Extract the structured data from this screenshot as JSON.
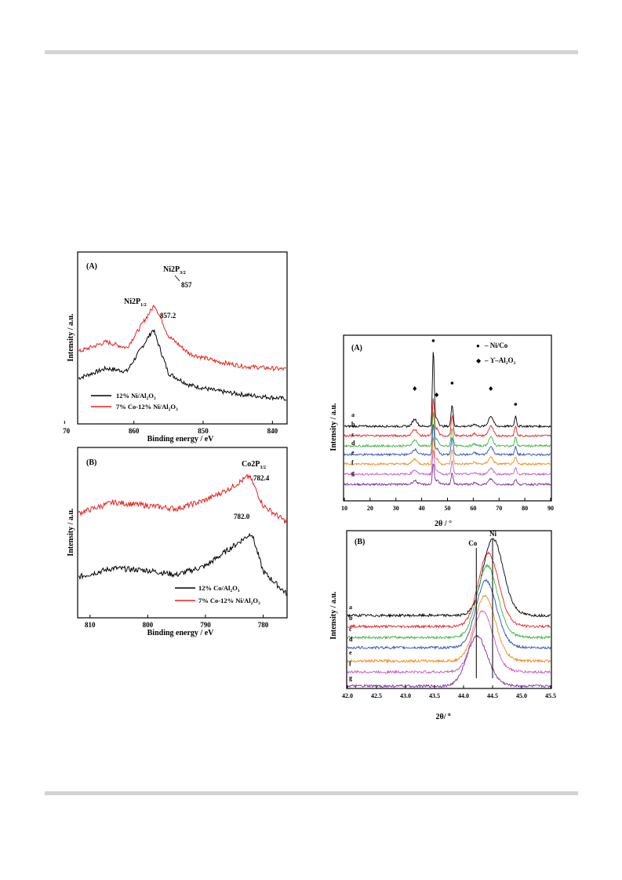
{
  "xps_A": {
    "panel_label": "(A)",
    "xlabel": "Binding energy / eV",
    "ylabel": "Intensity / a.u.",
    "x_ticks": [
      870,
      860,
      850,
      840
    ],
    "xlim": [
      868,
      838
    ],
    "peak_labels": {
      "upper_main": "Ni2P",
      "upper_main_sub": "3/2",
      "upper_value": "857",
      "upper_small": "Ni2P",
      "upper_small_sub": "1/2",
      "lower_value": "857.2"
    },
    "legend": [
      {
        "text": "12% Ni/Al",
        "sub1": "2",
        "mid": "O",
        "sub2": "3",
        "tail": "",
        "color": "#000000"
      },
      {
        "text": "7% Co-12% Ni/Al",
        "sub1": "2",
        "mid": "O",
        "sub2": "3",
        "tail": "",
        "color": "#e8231f"
      }
    ]
  },
  "xps_B": {
    "panel_label": "(B)",
    "xlabel": "Binding energy / eV",
    "ylabel": "Intensity / a.u.",
    "x_ticks": [
      810,
      800,
      790,
      780
    ],
    "xlim": [
      812,
      776
    ],
    "peak_labels": {
      "upper_main": "Co2P",
      "upper_main_sub": "3/2",
      "upper_value": "782.4",
      "lower_value": "782.0"
    },
    "legend": [
      {
        "text": "12% Co/Al",
        "sub1": "2",
        "mid": "O",
        "sub2": "3",
        "tail": "",
        "color": "#000000"
      },
      {
        "text": "7% Co-12% Ni/Al",
        "sub1": "2",
        "mid": "O",
        "sub2": "3",
        "tail": "",
        "color": "#e8231f"
      }
    ]
  },
  "xrd_A": {
    "panel_label": "(A)",
    "xlabel": "2θ / °",
    "ylabel": "Intensity / a.u.",
    "x_ticks": [
      10,
      20,
      30,
      40,
      50,
      60,
      70,
      80,
      90
    ],
    "legend": [
      {
        "symbol": "●",
        "text": "– Ni/Co"
      },
      {
        "symbol": "◆",
        "text": "– ϒ–Al",
        "sub1": "2",
        "mid": "O",
        "sub2": "3"
      }
    ],
    "series_labels": [
      "a",
      "b",
      "c",
      "d",
      "e",
      "f",
      "g"
    ]
  },
  "xrd_B": {
    "panel_label": "(B)",
    "xlabel": "2θ/ ",
    "xlabel_sup": "o",
    "ylabel": "Intensity / a.u.",
    "x_ticks": [
      "42.0",
      "42.5",
      "43.0",
      "43.5",
      "44.0",
      "44.5",
      "45.0",
      "45.5"
    ],
    "ref_labels": [
      "Co",
      "Ni"
    ],
    "series_labels": [
      "a",
      "b",
      "c",
      "d",
      "e",
      "f",
      "g"
    ]
  },
  "series_colors": [
    "#000000",
    "#e8231f",
    "#3cb53c",
    "#2a4fbf",
    "#f08a1c",
    "#c45ac8",
    "#7a2c9a"
  ],
  "chart_data": [
    {
      "type": "line",
      "title": "(A)",
      "xlabel": "Binding energy / eV",
      "ylabel": "Intensity / a.u.",
      "xlim": [
        868,
        838
      ],
      "series": [
        {
          "name": "12% Ni/Al2O3",
          "x": [
            868,
            864,
            861,
            857.2,
            855,
            852,
            848,
            844,
            838
          ],
          "y": [
            0.25,
            0.35,
            0.32,
            0.75,
            0.3,
            0.18,
            0.12,
            0.08,
            0.04
          ]
        },
        {
          "name": "7% Co-12% Ni/Al2O3",
          "x": [
            868,
            864,
            861,
            857,
            855,
            852,
            848,
            844,
            838
          ],
          "y": [
            0.52,
            0.62,
            0.56,
            1.0,
            0.68,
            0.5,
            0.42,
            0.37,
            0.34
          ]
        }
      ],
      "annotations": [
        "Ni2P3/2",
        "857",
        "Ni2P1/2",
        "857.2"
      ]
    },
    {
      "type": "line",
      "title": "(B)",
      "xlabel": "Binding energy / eV",
      "ylabel": "Intensity / a.u.",
      "xlim": [
        812,
        776
      ],
      "series": [
        {
          "name": "12% Co/Al2O3",
          "x": [
            812,
            806,
            800,
            795,
            790,
            786,
            782.0,
            780,
            776
          ],
          "y": [
            0.2,
            0.28,
            0.26,
            0.22,
            0.3,
            0.45,
            0.6,
            0.25,
            0.05
          ]
        },
        {
          "name": "7% Co-12% Ni/Al2O3",
          "x": [
            812,
            806,
            800,
            795,
            790,
            786,
            782.4,
            780,
            776
          ],
          "y": [
            0.78,
            0.88,
            0.85,
            0.82,
            0.9,
            1.0,
            1.12,
            0.85,
            0.7
          ]
        }
      ],
      "annotations": [
        "Co2P3/2",
        "782.4",
        "782.0"
      ]
    },
    {
      "type": "line",
      "title": "(A)",
      "xlabel": "2θ / °",
      "ylabel": "Intensity / a.u.",
      "xlim": [
        10,
        90
      ],
      "peaks_ni_co": [
        44.5,
        51.8,
        76.4
      ],
      "peaks_al2o3": [
        37.3,
        45.8,
        66.8
      ],
      "series": [
        {
          "name": "a"
        },
        {
          "name": "b"
        },
        {
          "name": "c"
        },
        {
          "name": "d"
        },
        {
          "name": "e"
        },
        {
          "name": "f"
        },
        {
          "name": "g"
        }
      ]
    },
    {
      "type": "line",
      "title": "(B)",
      "xlabel": "2θ/ o",
      "ylabel": "Intensity / a.u.",
      "xlim": [
        42.0,
        45.5
      ],
      "reference_lines": [
        {
          "label": "Co",
          "x": 44.22
        },
        {
          "label": "Ni",
          "x": 44.5
        }
      ],
      "series": [
        {
          "name": "a",
          "peak_x": 44.5
        },
        {
          "name": "b",
          "peak_x": 44.42
        },
        {
          "name": "c",
          "peak_x": 44.4
        },
        {
          "name": "d",
          "peak_x": 44.38
        },
        {
          "name": "e",
          "peak_x": 44.36
        },
        {
          "name": "f",
          "peak_x": 44.32
        },
        {
          "name": "g",
          "peak_x": 44.22
        }
      ]
    }
  ]
}
